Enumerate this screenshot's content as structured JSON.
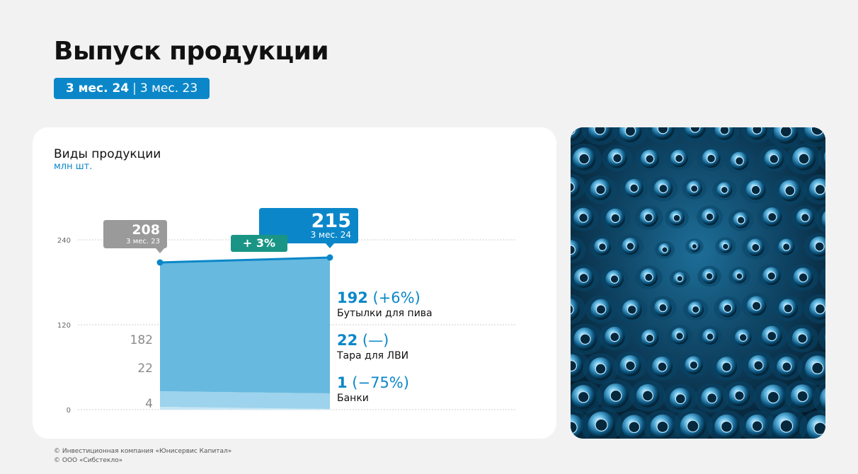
{
  "page": {
    "title": "Выпуск продукции",
    "period_current": "3 мес. 24",
    "period_separator": "|",
    "period_previous": "3 мес. 23"
  },
  "chart_data": {
    "type": "area",
    "title": "Виды продукции",
    "unit": "млн шт.",
    "ylim": [
      0,
      240
    ],
    "y_ticks": [
      0,
      120,
      240
    ],
    "grid": true,
    "x": [
      "3 мес. 23",
      "3 мес. 24"
    ],
    "series": [
      {
        "name": "Банки",
        "values": [
          4,
          1
        ],
        "change": "(−75%)",
        "color": "#c6e6f5"
      },
      {
        "name": "Тара для ЛВИ",
        "values": [
          22,
          22
        ],
        "change": "(—)",
        "color": "#9dd3ec"
      },
      {
        "name": "Бутылки для пива",
        "values": [
          182,
          192
        ],
        "change": "(+6%)",
        "color": "#67b9df"
      }
    ],
    "totals": [
      208,
      215
    ],
    "total_change": "+ 3%",
    "colors": {
      "accent": "#0b87c9",
      "previous": "#9a9a9a",
      "growth": "#1a9585"
    }
  },
  "footer": {
    "line1": "© Инвестиционная компания «Юнисервис Капитал»",
    "line2": "© ООО «Сибстекло»"
  },
  "photo": {
    "icon": "glass-bottles-photo"
  }
}
